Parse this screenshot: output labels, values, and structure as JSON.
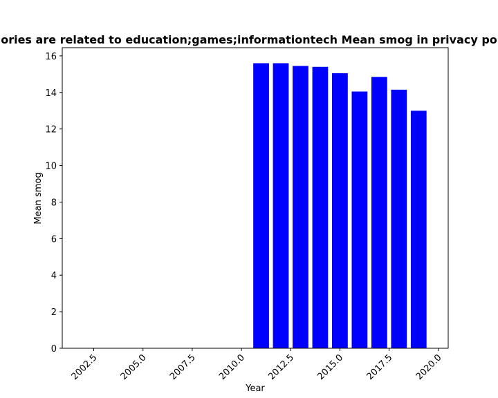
{
  "chart_data": {
    "type": "bar",
    "title": "…ories are related to education;games;informationtech Mean smog in privacy po…",
    "xlabel": "Year",
    "ylabel": "Mean smog",
    "x": [
      2011,
      2012,
      2013,
      2014,
      2015,
      2016,
      2017,
      2018,
      2019
    ],
    "values": [
      15.6,
      15.6,
      15.45,
      15.4,
      15.05,
      14.05,
      14.85,
      14.15,
      13.0
    ],
    "bar_width": 0.8,
    "bar_color": "#0000ff",
    "xlim": [
      2000.9,
      2020.5
    ],
    "ylim": [
      0,
      16.45
    ],
    "xticks": [
      2002.5,
      2005.0,
      2007.5,
      2010.0,
      2012.5,
      2015.0,
      2017.5,
      2020.0
    ],
    "xtick_labels": [
      "2002.5",
      "2005.0",
      "2007.5",
      "2010.0",
      "2012.5",
      "2015.0",
      "2017.5",
      "2020.0"
    ],
    "yticks": [
      0,
      2,
      4,
      6,
      8,
      10,
      12,
      14,
      16
    ],
    "ytick_labels": [
      "0",
      "2",
      "4",
      "6",
      "8",
      "10",
      "12",
      "14",
      "16"
    ],
    "grid": false,
    "legend": "none"
  }
}
